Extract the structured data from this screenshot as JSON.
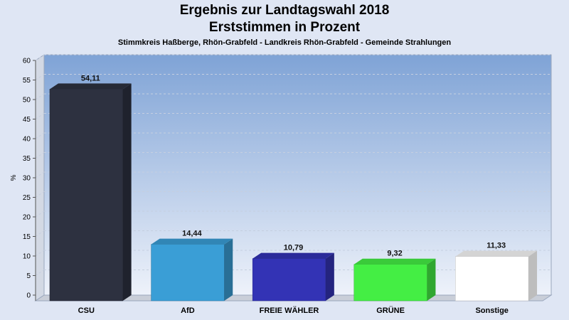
{
  "chart_data": {
    "type": "bar",
    "title": "Ergebnis zur Landtagswahl 2018",
    "subtitle": "Erststimmen in Prozent",
    "subtitle2": "Stimmkreis Haßberge, Rhön-Grabfeld - Landkreis Rhön-Grabfeld - Gemeinde Strahlungen",
    "ylabel": "%",
    "ylim": [
      0,
      60
    ],
    "yticks": [
      0,
      5,
      10,
      15,
      20,
      25,
      30,
      35,
      40,
      45,
      50,
      55,
      60
    ],
    "categories": [
      "CSU",
      "AfD",
      "FREIE WÄHLER",
      "GRÜNE",
      "Sonstige"
    ],
    "values": [
      54.11,
      14.44,
      10.79,
      9.32,
      11.33
    ],
    "value_labels": [
      "54,11",
      "14,44",
      "10,79",
      "9,32",
      "11,33"
    ],
    "colors": [
      "#2d3140",
      "#3a9ed6",
      "#3333b5",
      "#44ee44",
      "#ffffff"
    ],
    "grid": true
  }
}
